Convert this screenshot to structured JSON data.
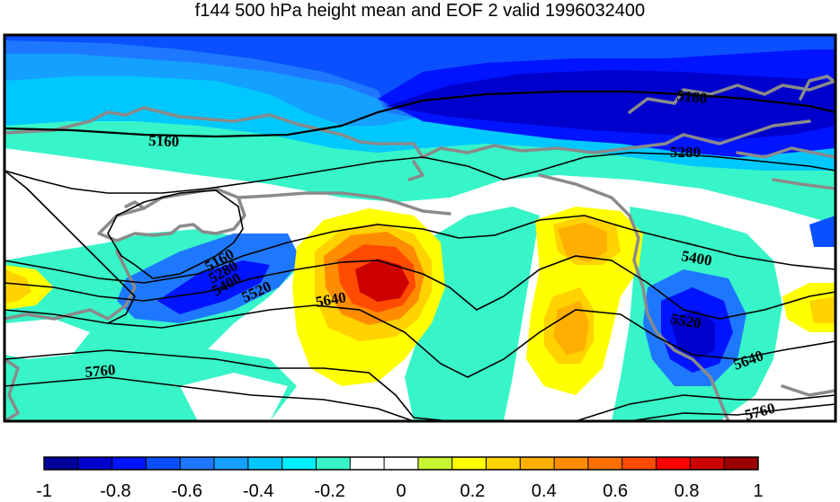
{
  "title": "f144 500 hPa height mean and EOF 2 valid 1996032400",
  "contour_labels": [
    "5160",
    "5160",
    "5280",
    "5160",
    "5280",
    "5400",
    "5520",
    "5640",
    "5760",
    "5400",
    "5520",
    "5640",
    "5760"
  ],
  "colorbar": {
    "tick_labels": [
      "-1",
      "-0.8",
      "-0.6",
      "-0.4",
      "-0.2",
      "0",
      "0.2",
      "0.4",
      "0.6",
      "0.8",
      "1"
    ],
    "colors": [
      "#00009b",
      "#0000cd",
      "#0014ff",
      "#0a50ff",
      "#1e78ff",
      "#14a0ff",
      "#00c8ff",
      "#00f0ff",
      "#37f5c8",
      "#ffffff",
      "#ffffff",
      "#c8f532",
      "#ffff00",
      "#ffd200",
      "#ffaf00",
      "#ff8c00",
      "#ff6e00",
      "#ff4b00",
      "#ff0000",
      "#cd0000",
      "#9b0000"
    ]
  },
  "colors": {
    "coastline": "#8a8a8a",
    "contour": "#000000",
    "frame": "#000000"
  }
}
